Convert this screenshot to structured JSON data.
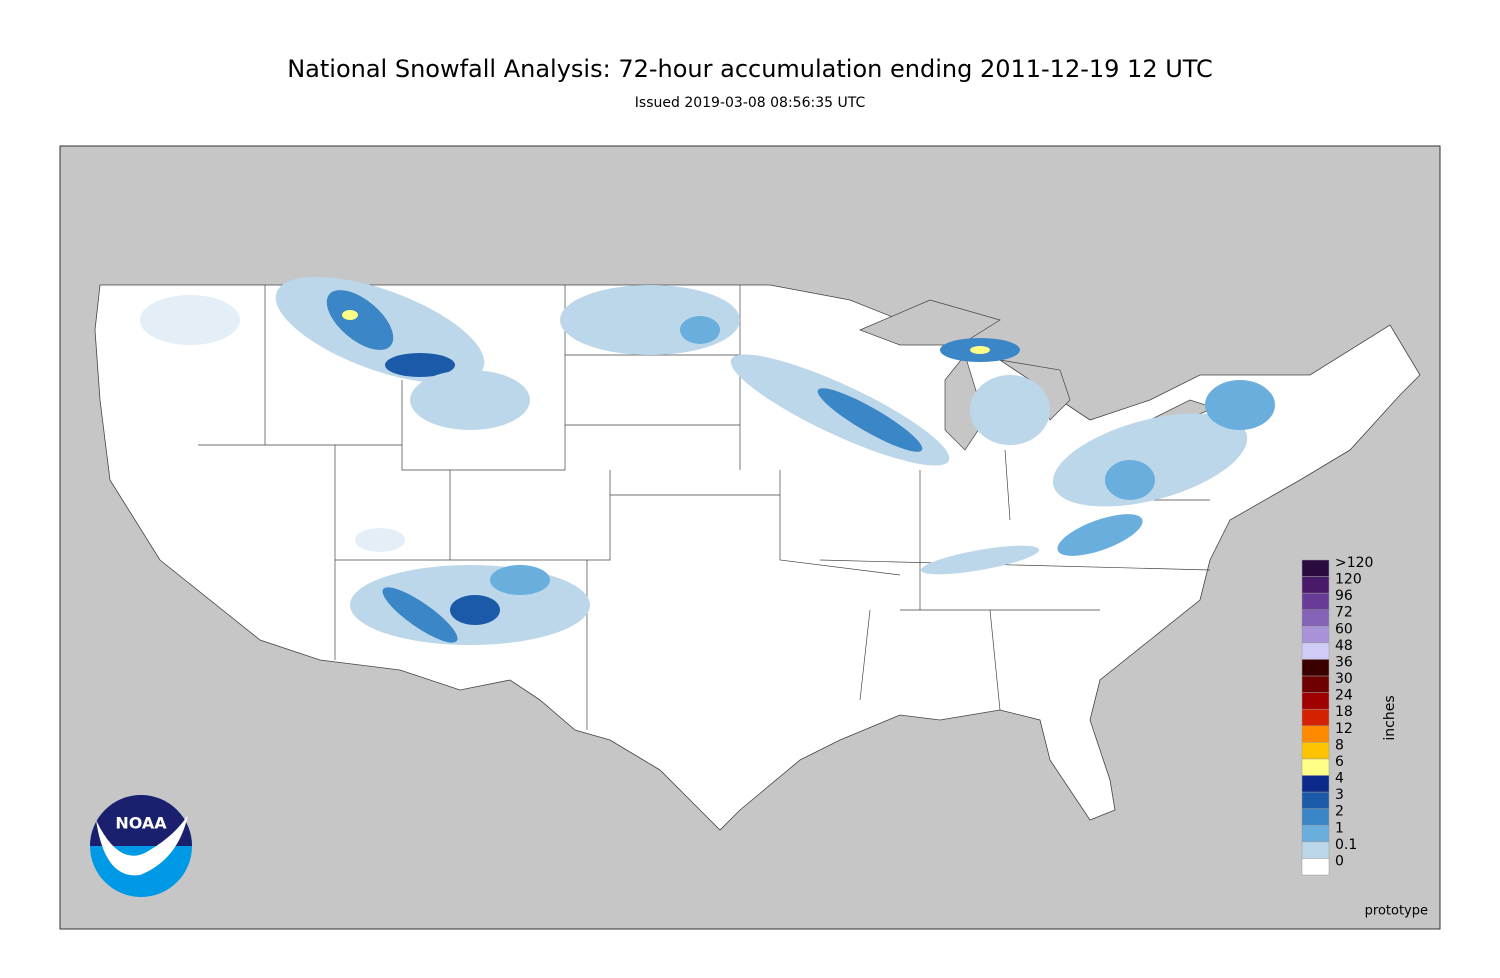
{
  "header": {
    "title": "National Snowfall Analysis: 72-hour accumulation ending 2011-12-19 12 UTC",
    "subtitle": "Issued 2019-03-08 08:56:35 UTC"
  },
  "legend": {
    "unit": "inches",
    "items": [
      {
        "label": ">120",
        "color": "#2b0b3f"
      },
      {
        "label": "120",
        "color": "#4a1a6a"
      },
      {
        "label": "96",
        "color": "#683c96"
      },
      {
        "label": "72",
        "color": "#8563b6"
      },
      {
        "label": "60",
        "color": "#a893d9"
      },
      {
        "label": "48",
        "color": "#cfccf8"
      },
      {
        "label": "36",
        "color": "#3a0000"
      },
      {
        "label": "30",
        "color": "#6e0000"
      },
      {
        "label": "24",
        "color": "#a00000"
      },
      {
        "label": "18",
        "color": "#d42200"
      },
      {
        "label": "12",
        "color": "#ff8a00"
      },
      {
        "label": "8",
        "color": "#ffc400"
      },
      {
        "label": "6",
        "color": "#ffff88"
      },
      {
        "label": "4",
        "color": "#0c2a8a"
      },
      {
        "label": "3",
        "color": "#1a5aa8"
      },
      {
        "label": "2",
        "color": "#3a86c6"
      },
      {
        "label": "1",
        "color": "#6aaede"
      },
      {
        "label": "0.1",
        "color": "#bcd7ea"
      },
      {
        "label": "0",
        "color": "#ffffff"
      }
    ]
  },
  "footer": {
    "note": "prototype"
  },
  "logo": {
    "text": "NOAA"
  }
}
